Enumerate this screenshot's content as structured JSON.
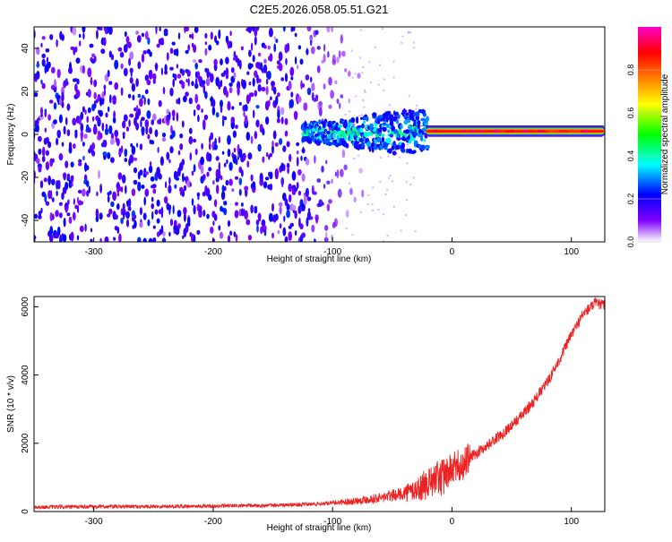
{
  "title": "C2E5.2026.058.05.51.G21",
  "chart_data": [
    {
      "type": "heatmap",
      "xlabel": "Height of straight line (km)",
      "ylabel": "Frequency (Hz)",
      "xlim": [
        -350,
        128
      ],
      "ylim": [
        -50,
        50
      ],
      "xticks": [
        -300,
        -200,
        -100,
        0,
        100
      ],
      "yticks": [
        -40,
        -20,
        0,
        20,
        40
      ],
      "colorbar": {
        "label": "Normalized spectral amplitude",
        "range": [
          0,
          1
        ],
        "ticks": [
          "0.0",
          "0.2",
          "0.4",
          "0.6",
          "0.8"
        ],
        "colors": [
          "#ffffff",
          "#7f00ff",
          "#0000ff",
          "#00ffff",
          "#00ff00",
          "#ffff00",
          "#ff8000",
          "#ff0000",
          "#ff00c8"
        ]
      },
      "regions": [
        {
          "x": [
            -350,
            -130
          ],
          "freq": [
            -50,
            50
          ],
          "amplitude": "0.05-0.25 noise"
        },
        {
          "x": [
            -130,
            -70
          ],
          "freq": [
            -50,
            50
          ],
          "amplitude": "0.0-0.15 fading noise"
        },
        {
          "x": [
            -125,
            -20
          ],
          "freq": [
            -10,
            10
          ],
          "amplitude": "0.2-0.5 broadened signal"
        },
        {
          "x": [
            -20,
            128
          ],
          "freq": [
            0.5,
            2.5
          ],
          "amplitude": "0.5-0.95 narrow carrier"
        }
      ]
    },
    {
      "type": "line",
      "xlabel": "Height of straight line (km)",
      "ylabel": "SNR (10 * v/v)",
      "xlim": [
        -350,
        128
      ],
      "ylim": [
        0,
        6300
      ],
      "xticks": [
        -300,
        -200,
        -100,
        0,
        100
      ],
      "yticks": [
        0,
        2000,
        4000,
        6000
      ],
      "color": "#ee2222",
      "series": [
        {
          "x": [
            -350,
            -300,
            -250,
            -200,
            -150,
            -120,
            -100,
            -80,
            -60,
            -40,
            -30,
            -20,
            -10,
            0,
            10,
            20,
            30,
            40,
            50,
            60,
            70,
            80,
            90,
            100,
            110,
            120,
            128
          ],
          "values": [
            130,
            140,
            150,
            160,
            180,
            210,
            250,
            320,
            400,
            540,
            640,
            800,
            1000,
            1220,
            1430,
            1700,
            1950,
            2220,
            2520,
            2870,
            3300,
            3800,
            4450,
            5180,
            5800,
            6100,
            6050
          ]
        }
      ]
    }
  ]
}
